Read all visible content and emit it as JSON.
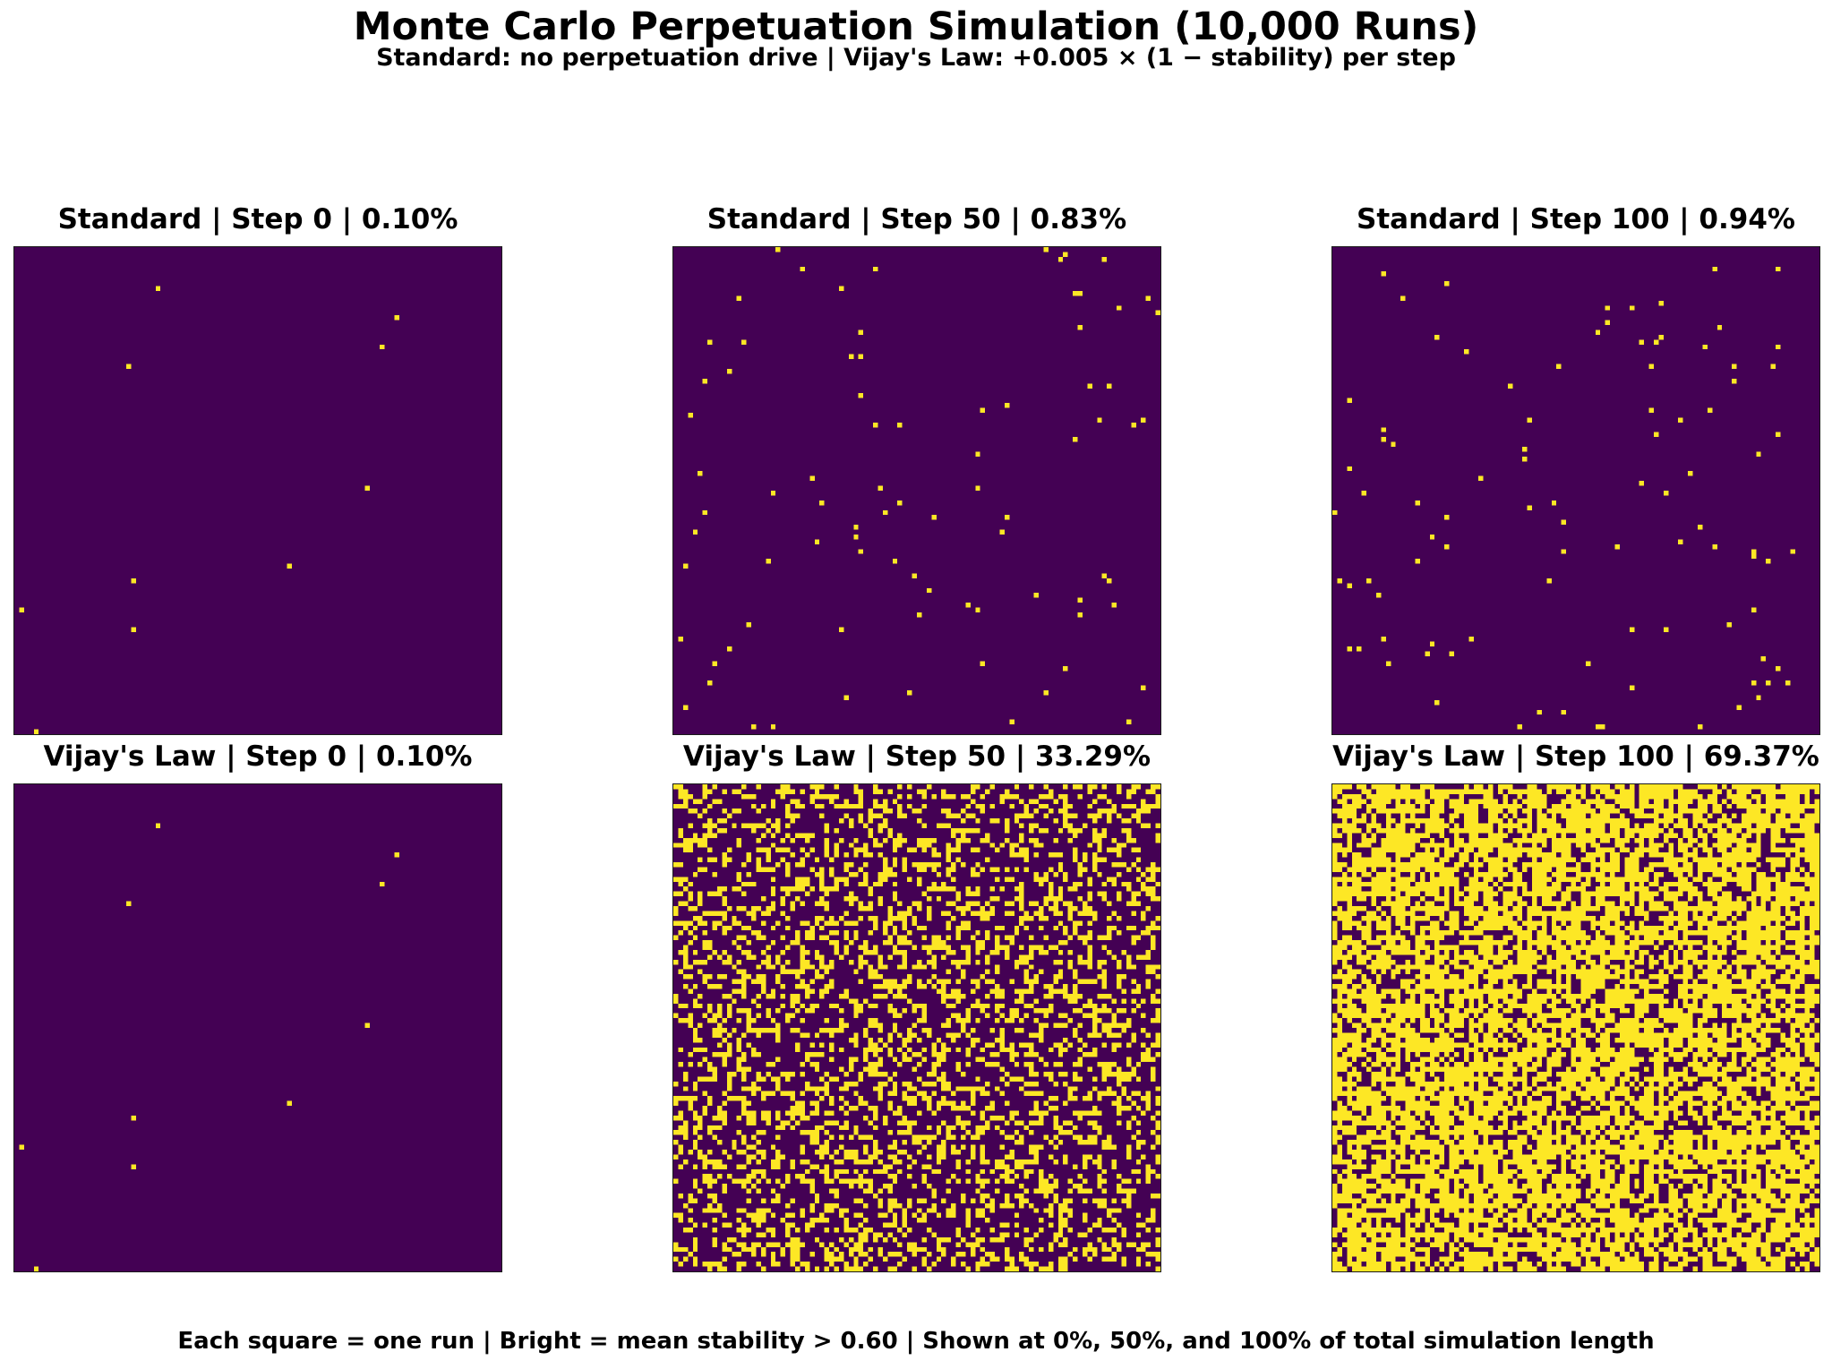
{
  "title": "Monte Carlo Perpetuation Simulation (10,000 Runs)",
  "subtitle": "Standard: no perpetuation drive | Vijay's Law: +0.005 × (1 − stability) per step",
  "caption": "Each square = one run | Bright = mean stability > 0.60 | Shown at 0%, 50%, and 100% of total simulation length",
  "colors": {
    "low": "#440154",
    "high": "#fde725",
    "frame": "#1a1a1a",
    "background": "#ffffff"
  },
  "chart_data": {
    "type": "heatmap",
    "grid_rows": 100,
    "grid_cols": 100,
    "total_runs": 10000,
    "threshold": 0.6,
    "panels": [
      {
        "title": "Standard | Step 0 | 0.10%",
        "model": "Standard",
        "step": 0,
        "percent_bright": 0.1
      },
      {
        "title": "Standard | Step 50 | 0.83%",
        "model": "Standard",
        "step": 50,
        "percent_bright": 0.83
      },
      {
        "title": "Standard | Step 100 | 0.94%",
        "model": "Standard",
        "step": 100,
        "percent_bright": 0.94
      },
      {
        "title": "Vijay's Law | Step 0 | 0.10%",
        "model": "Vijay's Law",
        "step": 0,
        "percent_bright": 0.1
      },
      {
        "title": "Vijay's Law | Step 50 | 33.29%",
        "model": "Vijay's Law",
        "step": 50,
        "percent_bright": 33.29
      },
      {
        "title": "Vijay's Law | Step 100 | 69.37%",
        "model": "Vijay's Law",
        "step": 100,
        "percent_bright": 69.37
      }
    ]
  }
}
